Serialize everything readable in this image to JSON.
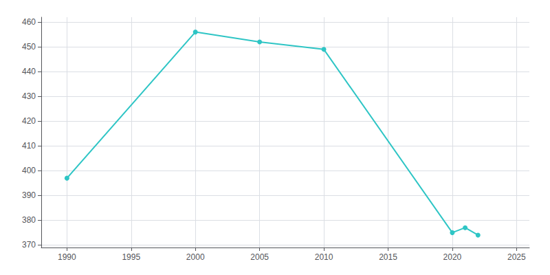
{
  "chart_data": {
    "type": "line",
    "x": [
      1990,
      2000,
      2005,
      2010,
      2020,
      2021,
      2022
    ],
    "values": [
      397,
      456,
      452,
      449,
      375,
      377,
      374
    ],
    "color": "#2ec5c5",
    "marker": "circle",
    "xlim": [
      1988,
      2026
    ],
    "ylim": [
      369,
      462
    ],
    "xticks": [
      1990,
      1995,
      2000,
      2005,
      2010,
      2015,
      2020,
      2025
    ],
    "yticks": [
      370,
      380,
      390,
      400,
      410,
      420,
      430,
      440,
      450,
      460
    ],
    "grid": true
  }
}
